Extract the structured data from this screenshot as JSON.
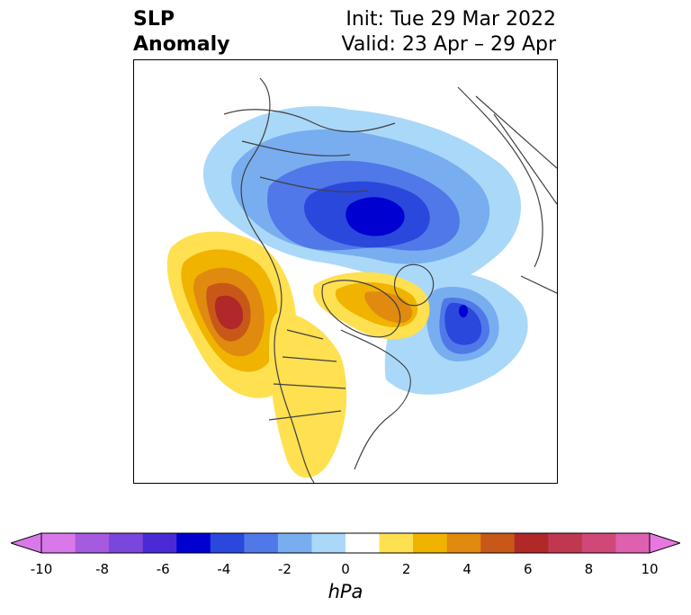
{
  "title": {
    "left_line1": "SLP",
    "left_line2": "Anomaly",
    "right_line1": "Init: Tue 29 Mar 2022",
    "right_line2": "Valid: 23 Apr – 29 Apr"
  },
  "colorbar": {
    "unit_label": "hPa",
    "ticks": [
      "-10",
      "-8",
      "-6",
      "-4",
      "-2",
      "0",
      "2",
      "4",
      "6",
      "8",
      "10"
    ],
    "colors": [
      "#d978e8",
      "#a55ae0",
      "#7a46db",
      "#4a2ad6",
      "#0000d0",
      "#2a48dc",
      "#5078e8",
      "#78aef0",
      "#aad8f8",
      "#ffffff",
      "#ffe050",
      "#f0b400",
      "#e08a10",
      "#c85818",
      "#b02828",
      "#c03850",
      "#d04878",
      "#e060b0"
    ],
    "extend_low": "#d978e8",
    "extend_high": "#e878e0"
  },
  "map": {
    "projection": "polar stereographic, North America / Arctic",
    "features": [
      "negative anomaly centered over Arctic / northern Russia",
      "negative anomaly over North Atlantic near Iceland",
      "positive anomaly over Gulf of Alaska",
      "positive anomaly over Hudson Bay / eastern Canada"
    ]
  }
}
